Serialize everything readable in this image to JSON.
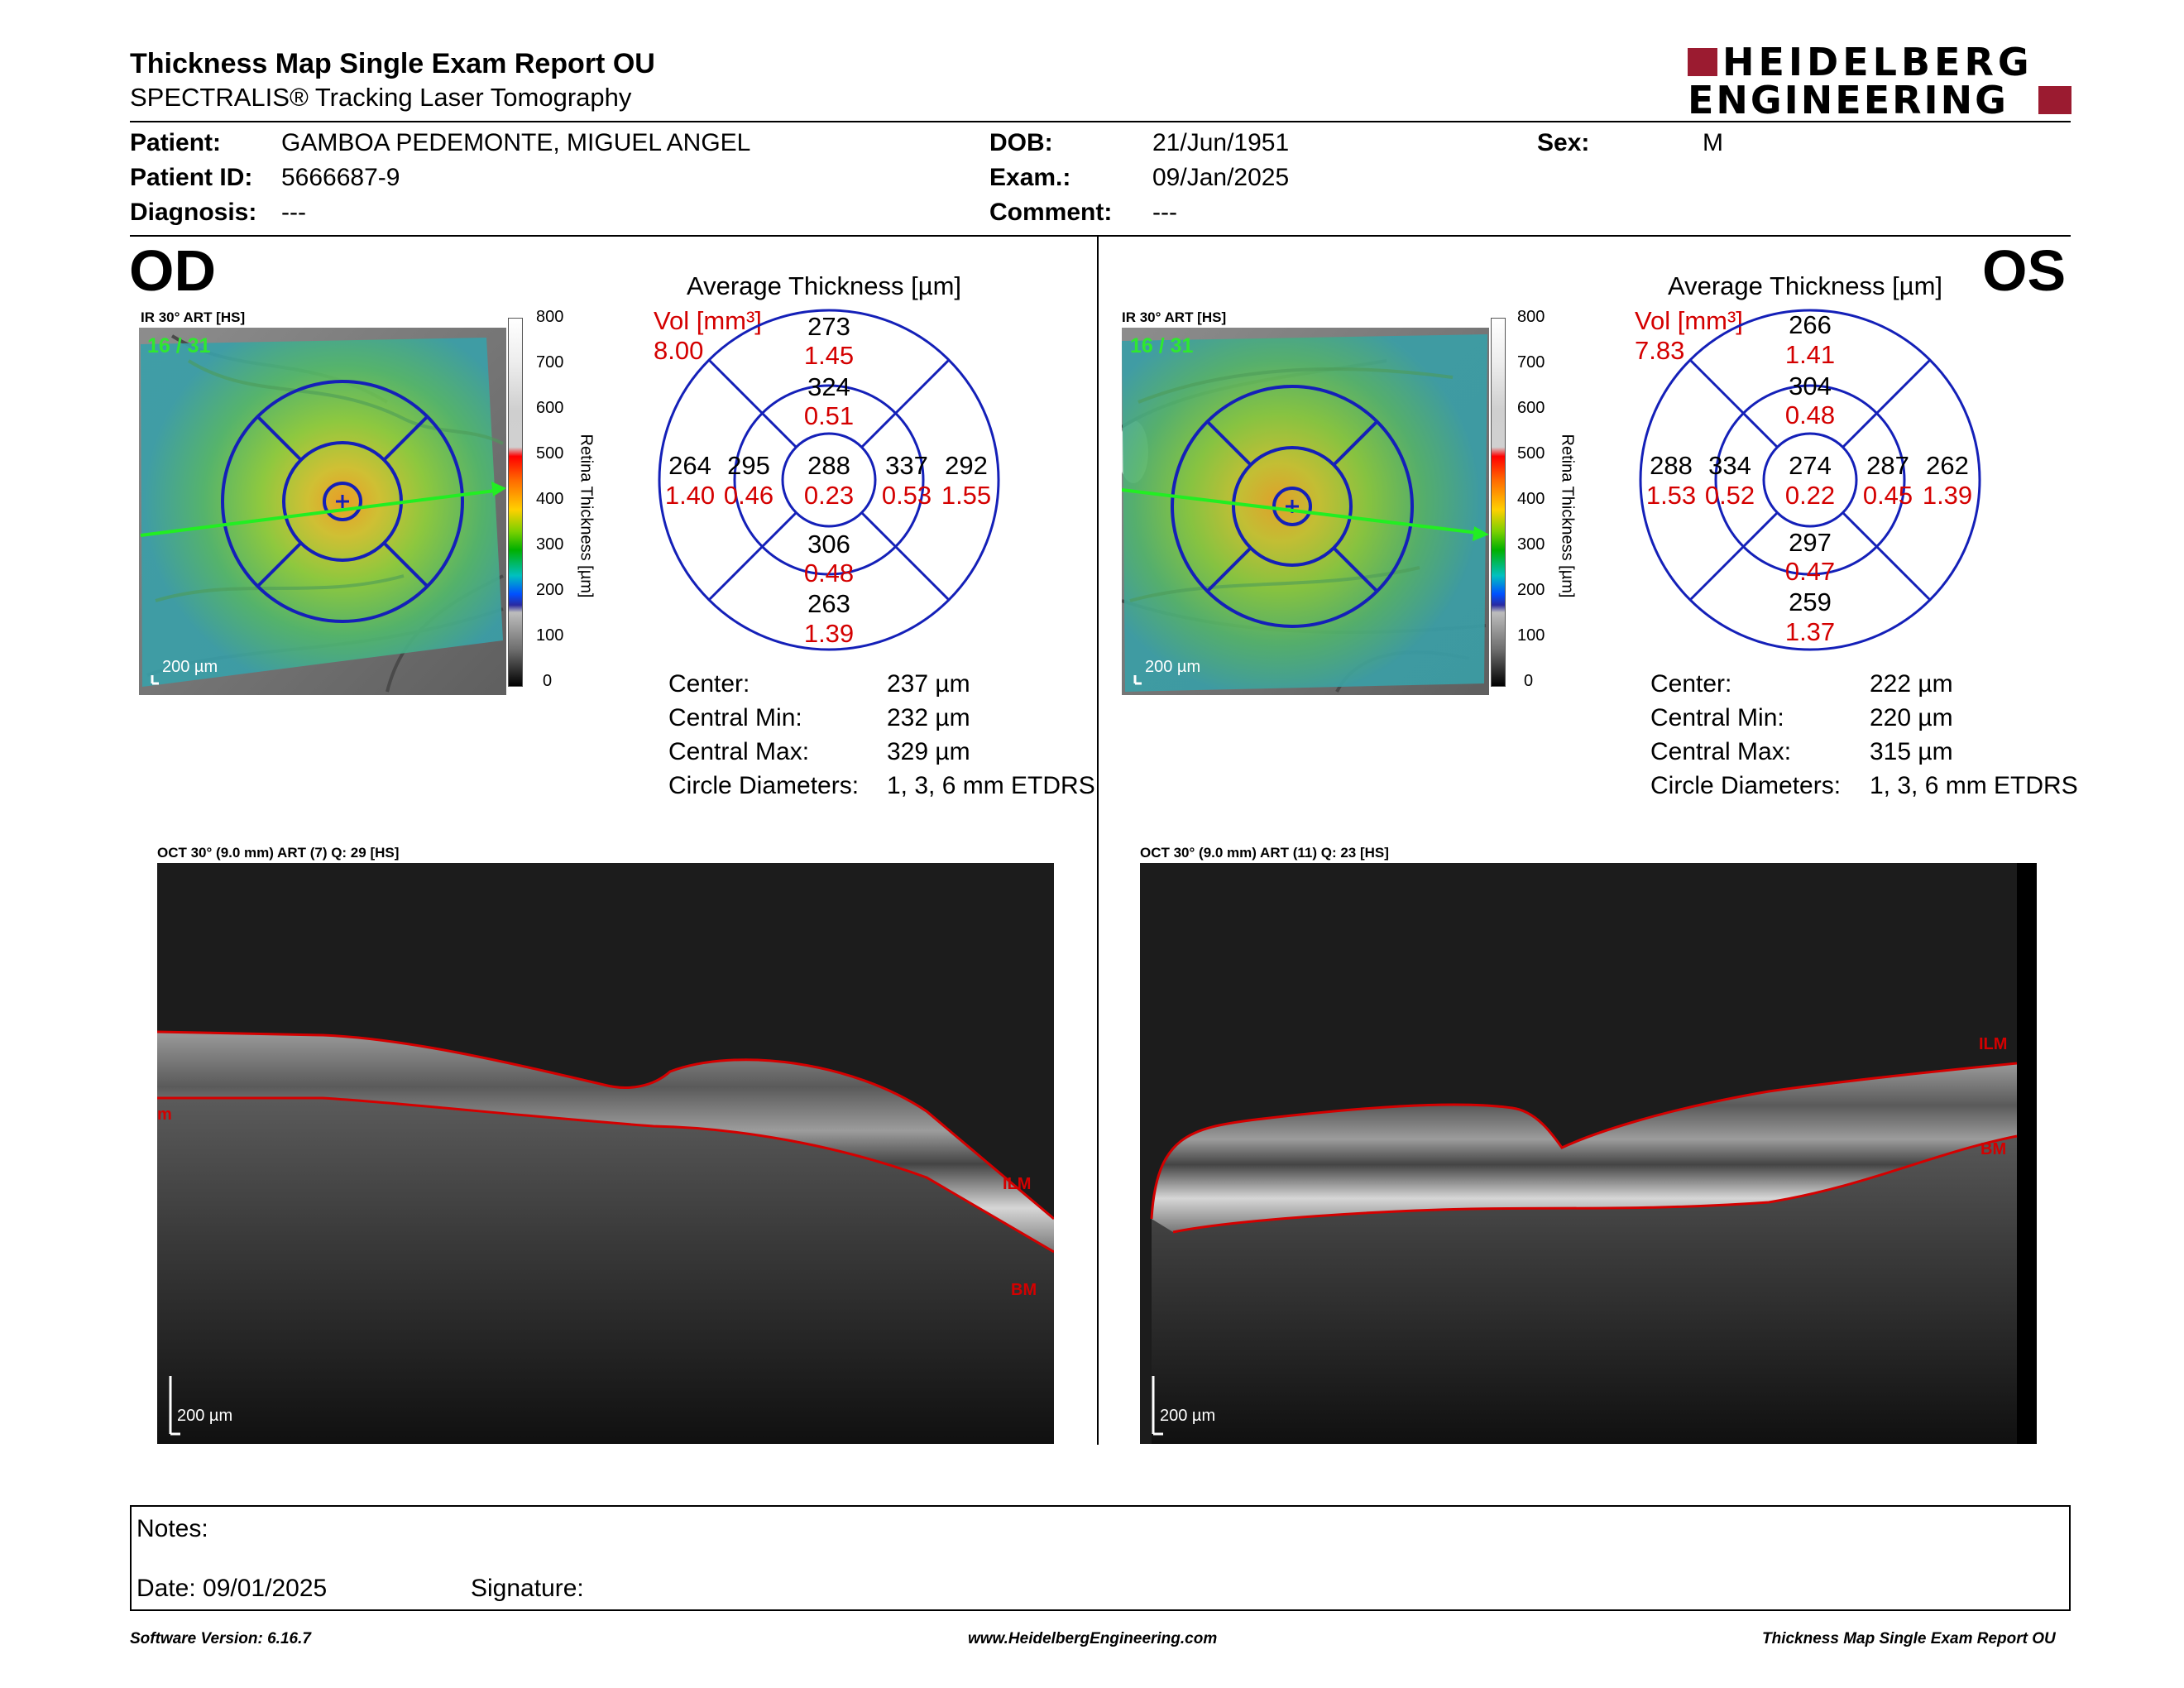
{
  "header": {
    "title": "Thickness Map Single Exam Report OU",
    "subtitle": "SPECTRALIS® Tracking Laser Tomography",
    "logo_line1": "HEIDELBERG",
    "logo_line2": "ENGINEERING",
    "logo_color": "#9b1b30"
  },
  "patient": {
    "patient_label": "Patient:",
    "patient_value": "GAMBOA PEDEMONTE, MIGUEL ANGEL",
    "id_label": "Patient ID:",
    "id_value": "5666687-9",
    "diag_label": "Diagnosis:",
    "diag_value": "---",
    "dob_label": "DOB:",
    "dob_value": "21/Jun/1951",
    "exam_label": "Exam.:",
    "exam_value": "09/Jan/2025",
    "comment_label": "Comment:",
    "comment_value": "---",
    "sex_label": "Sex:",
    "sex_value": "M"
  },
  "od": {
    "eye": "OD",
    "ir_label": "IR 30° ART [HS]",
    "frame_label": "16 / 31",
    "scale_label": "200 µm",
    "colorbar_ticks": [
      "800",
      "700",
      "600",
      "500",
      "400",
      "300",
      "200",
      "100",
      "0"
    ],
    "colorbar_title": "Retina Thickness [µm]",
    "avg_title": "Average Thickness [µm]",
    "vol_label": "Vol [mm³]",
    "vol_value": "8.00",
    "sectors": {
      "outer_sup": {
        "t": "273",
        "v": "1.45"
      },
      "inner_sup": {
        "t": "324",
        "v": "0.51"
      },
      "outer_left": {
        "t": "264",
        "v": "1.40"
      },
      "inner_left": {
        "t": "295",
        "v": "0.46"
      },
      "center": {
        "t": "288",
        "v": "0.23"
      },
      "inner_right": {
        "t": "337",
        "v": "0.53"
      },
      "outer_right": {
        "t": "292",
        "v": "1.55"
      },
      "inner_inf": {
        "t": "306",
        "v": "0.48"
      },
      "outer_inf": {
        "t": "263",
        "v": "1.39"
      }
    },
    "stats": {
      "center_label": "Center:",
      "center_value": "237 µm",
      "min_label": "Central Min:",
      "min_value": "232 µm",
      "max_label": "Central Max:",
      "max_value": "329 µm",
      "diam_label": "Circle Diameters:",
      "diam_value": "1, 3, 6 mm ETDRS"
    },
    "oct_label": "OCT 30° (9.0 mm) ART (7) Q: 29 [HS]",
    "oct_scale": "200 µm",
    "ilm_label": "ILM",
    "bm_label": "BM",
    "edge_label": "m"
  },
  "os": {
    "eye": "OS",
    "ir_label": "IR 30° ART [HS]",
    "frame_label": "16 / 31",
    "scale_label": "200 µm",
    "colorbar_ticks": [
      "800",
      "700",
      "600",
      "500",
      "400",
      "300",
      "200",
      "100",
      "0"
    ],
    "colorbar_title": "Retina Thickness [µm]",
    "avg_title": "Average Thickness [µm]",
    "vol_label": "Vol [mm³]",
    "vol_value": "7.83",
    "sectors": {
      "outer_sup": {
        "t": "266",
        "v": "1.41"
      },
      "inner_sup": {
        "t": "304",
        "v": "0.48"
      },
      "outer_left": {
        "t": "288",
        "v": "1.53"
      },
      "inner_left": {
        "t": "334",
        "v": "0.52"
      },
      "center": {
        "t": "274",
        "v": "0.22"
      },
      "inner_right": {
        "t": "287",
        "v": "0.45"
      },
      "outer_right": {
        "t": "262",
        "v": "1.39"
      },
      "inner_inf": {
        "t": "297",
        "v": "0.47"
      },
      "outer_inf": {
        "t": "259",
        "v": "1.37"
      }
    },
    "stats": {
      "center_label": "Center:",
      "center_value": "222 µm",
      "min_label": "Central Min:",
      "min_value": "220 µm",
      "max_label": "Central Max:",
      "max_value": "315 µm",
      "diam_label": "Circle Diameters:",
      "diam_value": "1, 3, 6 mm ETDRS"
    },
    "oct_label": "OCT 30° (9.0 mm) ART (11) Q: 23 [HS]",
    "oct_scale": "200 µm",
    "ilm_label": "ILM",
    "bm_label": "BM"
  },
  "notes": {
    "notes_label": "Notes:",
    "date_label": "Date: 09/01/2025",
    "signature_label": "Signature:"
  },
  "footer": {
    "software": "Software Version: 6.16.7",
    "website": "www.HeidelbergEngineering.com",
    "report": "Thickness Map Single Exam Report OU"
  },
  "colors": {
    "sector_lines": "#0a1aa8",
    "vol_red": "#d40000",
    "seg_red": "#d40000",
    "fundus_green": "#59c43c",
    "scan_line": "#22ee22"
  }
}
